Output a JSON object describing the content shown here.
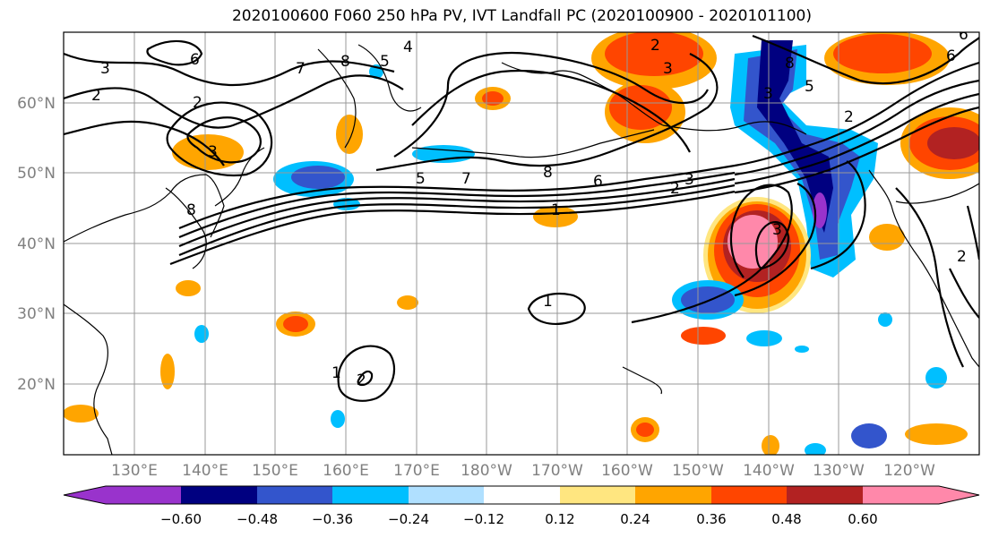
{
  "title": "2020100600 F060 250 hPa PV, IVT Landfall PC (2020100900 - 2020101100)",
  "lat_labels": [
    "60°N",
    "50°N",
    "40°N",
    "30°N",
    "20°N"
  ],
  "lon_labels": [
    "130°E",
    "140°E",
    "150°E",
    "160°E",
    "170°E",
    "180°W",
    "170°W",
    "160°W",
    "150°W",
    "140°W",
    "130°W",
    "120°W"
  ],
  "colorbar": {
    "colors": [
      "#9933cc",
      "#000080",
      "#3355cc",
      "#00bfff",
      "#b0e0ff",
      "#ffffff",
      "#ffe680",
      "#ffa500",
      "#ff4500",
      "#b22222",
      "#ff88aa"
    ],
    "tick_labels": [
      "−0.60",
      "−0.48",
      "−0.36",
      "−0.24",
      "−0.12",
      "0.12",
      "0.24",
      "0.36",
      "0.48",
      "0.60"
    ]
  },
  "contour_labels": [
    "2",
    "6",
    "3",
    "2",
    "7",
    "8",
    "5",
    "4",
    "8",
    "3",
    "5",
    "7",
    "8",
    "6",
    "2",
    "3",
    "2",
    "3",
    "8",
    "6",
    "5",
    "2",
    "3",
    "6",
    "1",
    "1",
    "1",
    "2",
    "3",
    "2"
  ]
}
